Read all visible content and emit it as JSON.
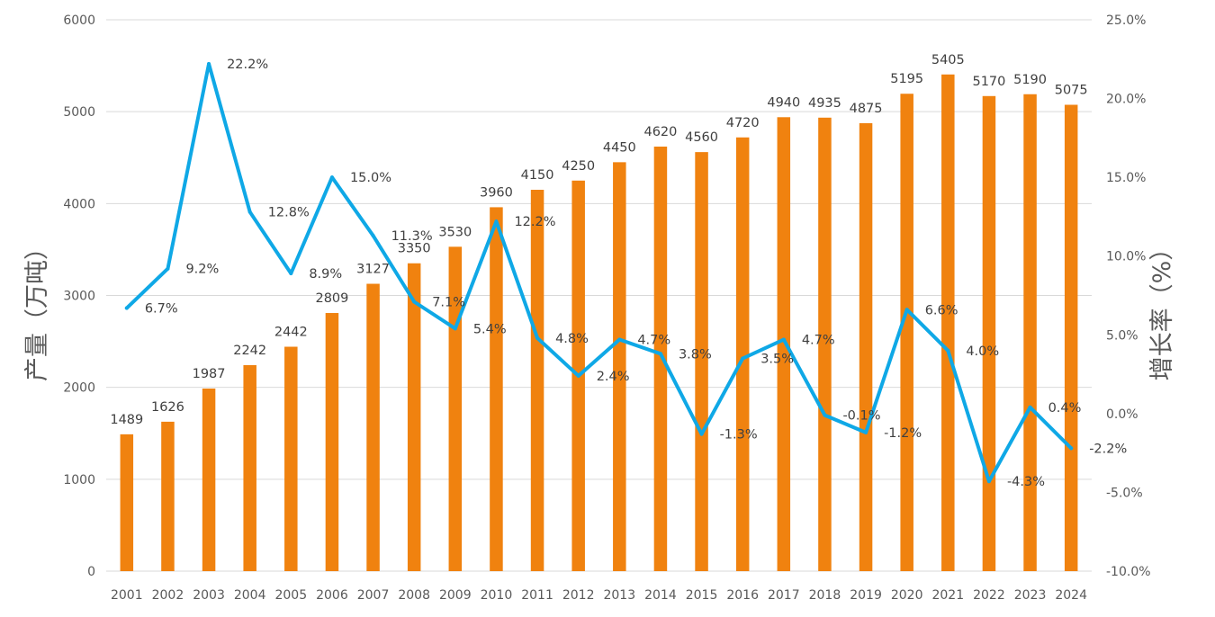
{
  "chart_data": {
    "type": "bar+line",
    "categories": [
      "2001",
      "2002",
      "2003",
      "2004",
      "2005",
      "2006",
      "2007",
      "2008",
      "2009",
      "2010",
      "2011",
      "2012",
      "2013",
      "2014",
      "2015",
      "2016",
      "2017",
      "2018",
      "2019",
      "2020",
      "2021",
      "2022",
      "2023",
      "2024"
    ],
    "series": [
      {
        "type": "bar",
        "axis": "left",
        "color": "#F0820F",
        "values": [
          1489,
          1626,
          1987,
          2242,
          2442,
          2809,
          3127,
          3350,
          3530,
          3960,
          4150,
          4250,
          4450,
          4620,
          4560,
          4720,
          4940,
          4935,
          4875,
          5195,
          5405,
          5170,
          5190,
          5075
        ],
        "labels": [
          "1489",
          "1626",
          "1987",
          "2242",
          "2442",
          "2809",
          "3127",
          "3350",
          "3530",
          "3960",
          "4150",
          "4250",
          "4450",
          "4620",
          "4560",
          "4720",
          "4940",
          "4935",
          "4875",
          "5195",
          "5405",
          "5170",
          "5190",
          "5075"
        ]
      },
      {
        "type": "line",
        "axis": "right",
        "color": "#0FA8E6",
        "values": [
          6.7,
          9.2,
          22.2,
          12.8,
          8.9,
          15.0,
          11.3,
          7.1,
          5.4,
          12.2,
          4.8,
          2.4,
          4.7,
          3.8,
          -1.3,
          3.5,
          4.7,
          -0.1,
          -1.2,
          6.6,
          4.0,
          -4.3,
          0.4,
          -2.2
        ],
        "labels": [
          "6.7%",
          "9.2%",
          "22.2%",
          "12.8%",
          "8.9%",
          "15.0%",
          "11.3%",
          "7.1%",
          "5.4%",
          "12.2%",
          "4.8%",
          "2.4%",
          "4.7%",
          "3.8%",
          "-1.3%",
          "3.5%",
          "4.7%",
          "-0.1%",
          "-1.2%",
          "6.6%",
          "4.0%",
          "-4.3%",
          "0.4%",
          "-2.2%"
        ]
      }
    ],
    "ylabel": "产量（万吨）",
    "y2label": "增长率（%）",
    "ylim": [
      0,
      6000
    ],
    "y2lim": [
      -10,
      25
    ],
    "yticks": [
      "0",
      "1000",
      "2000",
      "3000",
      "4000",
      "5000",
      "6000"
    ],
    "y2ticks": [
      "-10.0%",
      "-5.0%",
      "0.0%",
      "5.0%",
      "10.0%",
      "15.0%",
      "20.0%",
      "25.0%"
    ],
    "grid": true,
    "legend": "none"
  }
}
